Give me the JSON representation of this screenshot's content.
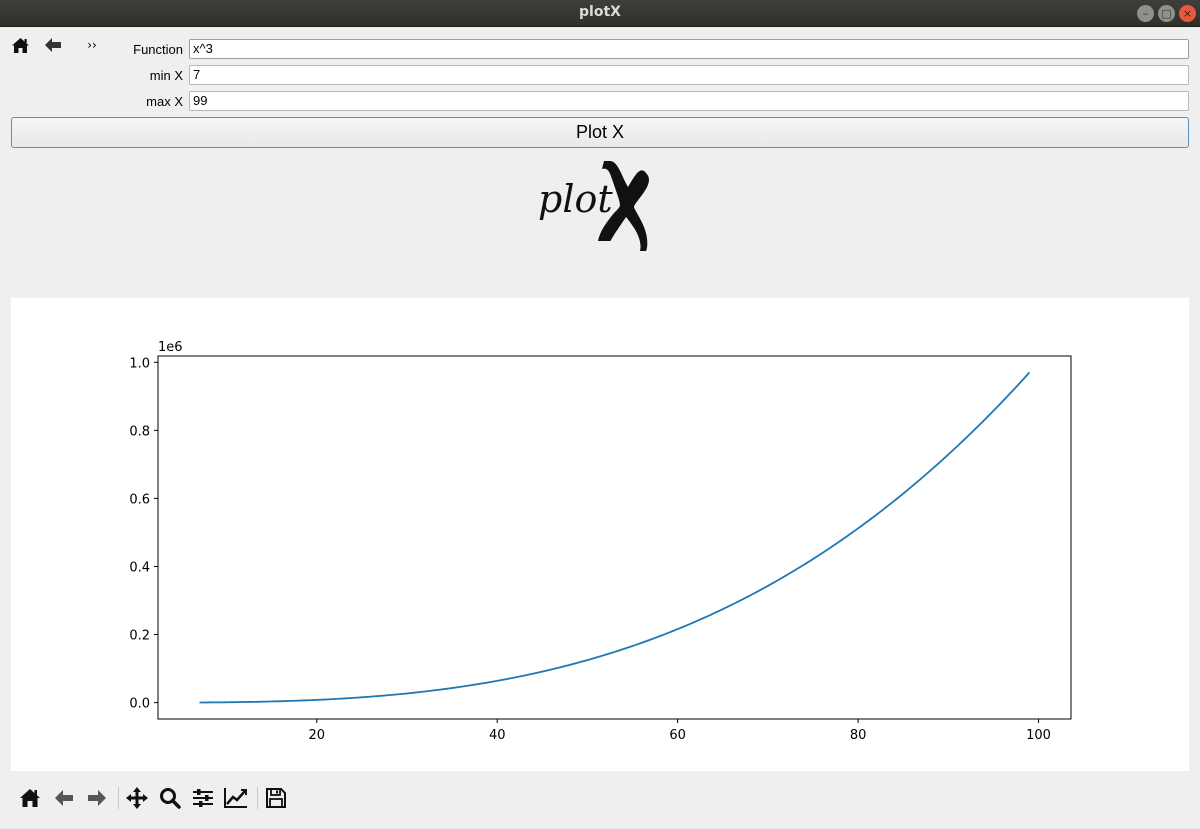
{
  "window": {
    "title": "plotX"
  },
  "form": {
    "function_label": "Function",
    "function_value": "x^3",
    "min_label": "min X",
    "min_value": "7",
    "max_label": "max X",
    "max_value": "99",
    "plot_button": "Plot X"
  },
  "top_toolbar": {
    "overflow": "››"
  },
  "logo": {
    "text": "plot"
  },
  "chart_data": {
    "type": "line",
    "function": "x^3",
    "x_range": [
      7,
      99
    ],
    "series": [
      {
        "x": [
          7,
          10,
          15,
          20,
          25,
          30,
          35,
          40,
          45,
          50,
          55,
          60,
          65,
          70,
          75,
          80,
          85,
          90,
          95,
          99
        ],
        "values": [
          343,
          1000,
          3375,
          8000,
          15625,
          27000,
          42875,
          64000,
          91125,
          125000,
          166375,
          216000,
          274625,
          343000,
          421875,
          512000,
          614125,
          729000,
          857375,
          970299
        ]
      }
    ],
    "xlim": [
      2.4,
      103.6
    ],
    "ylim": [
      -48150,
      1018450
    ],
    "x_ticks": [
      20,
      40,
      60,
      80,
      100
    ],
    "x_tick_labels": [
      "20",
      "40",
      "60",
      "80",
      "100"
    ],
    "y_ticks": [
      0,
      200000,
      400000,
      600000,
      800000,
      1000000
    ],
    "y_tick_labels": [
      "0.0",
      "0.2",
      "0.4",
      "0.6",
      "0.8",
      "1.0"
    ],
    "y_offset_label": "1e6",
    "line_color": "#1f77b4",
    "grid": false
  }
}
